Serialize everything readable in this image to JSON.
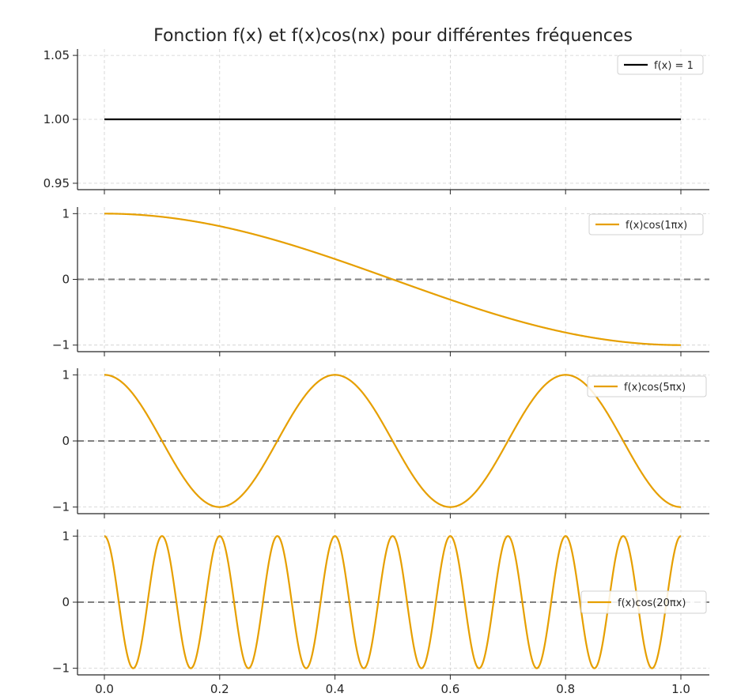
{
  "chart_data": {
    "type": "line",
    "title": "Fonction f(x) et f(x)cos(nx) pour différentes fréquences",
    "x_range": [
      0.0,
      1.0
    ],
    "x_ticks": [
      0.0,
      0.2,
      0.4,
      0.6,
      0.8,
      1.0
    ],
    "x_tick_labels": [
      "0.0",
      "0.2",
      "0.4",
      "0.6",
      "0.8",
      "1.0"
    ],
    "grid": true,
    "panels": [
      {
        "series_name": "f(x) = 1",
        "function": "constant",
        "frequency": 0,
        "color": "#000000",
        "ylim": [
          0.945,
          1.055
        ],
        "y_ticks": [
          0.95,
          1.0,
          1.05
        ],
        "y_tick_labels": [
          "0.95",
          "1.00",
          "1.05"
        ],
        "zero_line": false,
        "legend_position": "top-right"
      },
      {
        "series_name": "f(x)cos(1πx)",
        "function": "cos",
        "frequency": 1,
        "color": "#e69f00",
        "ylim": [
          -1.1,
          1.1
        ],
        "y_ticks": [
          -1,
          0,
          1
        ],
        "y_tick_labels": [
          "−1",
          "0",
          "1"
        ],
        "zero_line": true,
        "legend_position": "top-right"
      },
      {
        "series_name": "f(x)cos(5πx)",
        "function": "cos",
        "frequency": 5,
        "color": "#e69f00",
        "ylim": [
          -1.1,
          1.1
        ],
        "y_ticks": [
          -1,
          0,
          1
        ],
        "y_tick_labels": [
          "−1",
          "0",
          "1"
        ],
        "zero_line": true,
        "legend_position": "top-right"
      },
      {
        "series_name": "f(x)cos(20πx)",
        "function": "cos",
        "frequency": 20,
        "color": "#e69f00",
        "ylim": [
          -1.1,
          1.1
        ],
        "y_ticks": [
          -1,
          0,
          1
        ],
        "y_tick_labels": [
          "−1",
          "0",
          "1"
        ],
        "zero_line": true,
        "legend_position": "center-right"
      }
    ]
  }
}
